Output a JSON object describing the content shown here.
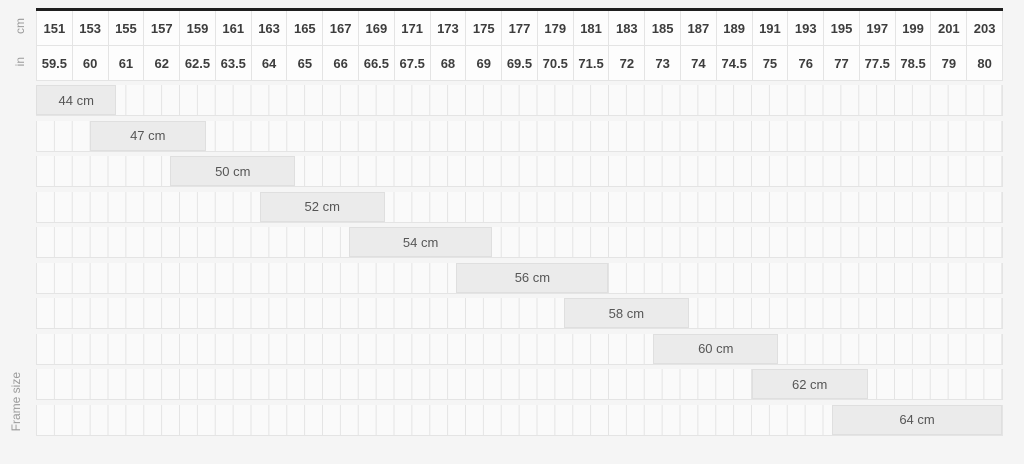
{
  "axis_labels": {
    "height_unit_top": "cm",
    "height_unit_bottom": "in",
    "frame_size": "Frame size"
  },
  "colors": {
    "page_background": "#f5f5f5",
    "header_cell_background": "#fdfdfd",
    "cell_background": "#fafafa",
    "grid_line": "#e4e4e4",
    "bar_fill": "#ebebeb",
    "bar_border": "#dfdfdf",
    "top_band": "#1f1f1f",
    "header_text": "#3d3d3d",
    "bar_text": "#565656",
    "axis_label_text": "#9b9b9b"
  },
  "chart_data": {
    "type": "bar",
    "variant": "horizontal-range-size-chart",
    "title": "",
    "x_axis": {
      "top_unit_label": "cm",
      "bottom_unit_label": "in",
      "min_cm": 150,
      "max_cm": 204,
      "major_step_cm": 2,
      "minor_step_cm": 1,
      "ticks_cm": [
        151,
        153,
        155,
        157,
        159,
        161,
        163,
        165,
        167,
        169,
        171,
        173,
        175,
        177,
        179,
        181,
        183,
        185,
        187,
        189,
        191,
        193,
        195,
        197,
        199,
        201,
        203
      ],
      "ticks_in": [
        59.5,
        60,
        61,
        62,
        62.5,
        63.5,
        64,
        65,
        66,
        66.5,
        67.5,
        68,
        69,
        69.5,
        70.5,
        71.5,
        72,
        73,
        74,
        74.5,
        75,
        76,
        77,
        77.5,
        78.5,
        79,
        80
      ]
    },
    "y_axis": {
      "label": "Frame size"
    },
    "grid": "on",
    "bars": [
      {
        "label": "44 cm",
        "size_cm": 44,
        "height_from_cm": 150.0,
        "height_to_cm": 154.5
      },
      {
        "label": "47 cm",
        "size_cm": 47,
        "height_from_cm": 153.0,
        "height_to_cm": 159.5
      },
      {
        "label": "50 cm",
        "size_cm": 50,
        "height_from_cm": 157.5,
        "height_to_cm": 164.5
      },
      {
        "label": "52 cm",
        "size_cm": 52,
        "height_from_cm": 162.5,
        "height_to_cm": 169.5
      },
      {
        "label": "54 cm",
        "size_cm": 54,
        "height_from_cm": 167.5,
        "height_to_cm": 175.5
      },
      {
        "label": "56 cm",
        "size_cm": 56,
        "height_from_cm": 173.5,
        "height_to_cm": 182.0
      },
      {
        "label": "58 cm",
        "size_cm": 58,
        "height_from_cm": 179.5,
        "height_to_cm": 186.5
      },
      {
        "label": "60 cm",
        "size_cm": 60,
        "height_from_cm": 184.5,
        "height_to_cm": 191.5
      },
      {
        "label": "62 cm",
        "size_cm": 62,
        "height_from_cm": 190.0,
        "height_to_cm": 196.5
      },
      {
        "label": "64 cm",
        "size_cm": 64,
        "height_from_cm": 194.5,
        "height_to_cm": 204.0
      }
    ]
  }
}
